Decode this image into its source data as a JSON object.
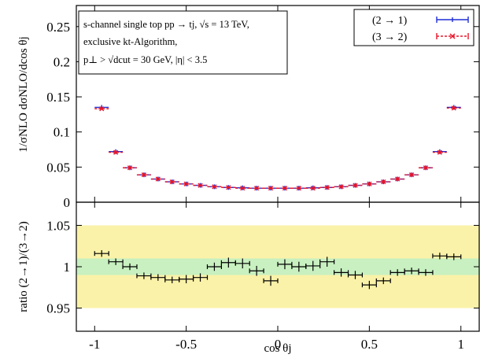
{
  "chart_data": {
    "type": "scatter",
    "xlabel": "cos θj",
    "x_ticks": [
      "-1",
      "-0.5",
      "0",
      "0.5",
      "1"
    ],
    "x_tick_values": [
      -1,
      -0.5,
      0,
      0.5,
      1
    ],
    "xlim": [
      -1.1,
      1.1
    ],
    "info_lines": [
      "s-channel single top  pp → tj, √s = 13 TeV,",
      "exclusive kt-Algorithm,",
      "p⊥ > √dcut = 30 GeV, |η| < 3.5"
    ],
    "legend_position": "top-right",
    "bin_half_width": 0.0385,
    "x_centers": [
      -0.9615,
      -0.8846,
      -0.8077,
      -0.7308,
      -0.6538,
      -0.5769,
      -0.5,
      -0.4231,
      -0.3462,
      -0.2692,
      -0.1923,
      -0.1154,
      -0.0385,
      0.0385,
      0.1154,
      0.1923,
      0.2692,
      0.3462,
      0.4231,
      0.5,
      0.5769,
      0.6538,
      0.7308,
      0.8077,
      0.8846,
      0.9615
    ],
    "main_panel": {
      "ylabel": "1/σNLO dσNLO/dcos θj",
      "ylim": [
        0,
        0.28
      ],
      "y_ticks": [
        "0",
        "0.05",
        "0.1",
        "0.15",
        "0.2",
        "0.25"
      ],
      "y_tick_values": [
        0,
        0.05,
        0.1,
        0.15,
        0.2,
        0.25
      ],
      "series": [
        {
          "name": "(2 → 1)",
          "color": "#1f2fd6",
          "values": [
            0.135,
            0.072,
            0.049,
            0.039,
            0.033,
            0.029,
            0.026,
            0.024,
            0.022,
            0.021,
            0.0205,
            0.02,
            0.02,
            0.02,
            0.02,
            0.0205,
            0.021,
            0.022,
            0.024,
            0.026,
            0.029,
            0.033,
            0.039,
            0.049,
            0.072,
            0.135
          ]
        },
        {
          "name": "(3 → 2)",
          "color": "#e8162a",
          "values": [
            0.133,
            0.071,
            0.049,
            0.039,
            0.033,
            0.029,
            0.026,
            0.024,
            0.022,
            0.021,
            0.02,
            0.02,
            0.02,
            0.02,
            0.02,
            0.02,
            0.021,
            0.022,
            0.024,
            0.026,
            0.029,
            0.033,
            0.039,
            0.049,
            0.071,
            0.134
          ]
        }
      ]
    },
    "ratio_panel": {
      "ylabel": "ratio (2→1)/(3→2)",
      "ylim": [
        0.922,
        1.078
      ],
      "y_ticks": [
        "0.95",
        "1",
        "1.05"
      ],
      "y_tick_values": [
        0.95,
        1,
        1.05
      ],
      "bands": [
        {
          "range": [
            0.95,
            1.05
          ],
          "color": "#faf2a8"
        },
        {
          "range": [
            0.99,
            1.01
          ],
          "color": "#c8f0c0"
        }
      ],
      "series": {
        "color": "#000000",
        "values": [
          1.016,
          1.006,
          1.0,
          0.989,
          0.987,
          0.984,
          0.985,
          0.987,
          1.0,
          1.005,
          1.004,
          0.995,
          0.983,
          1.003,
          1.0,
          1.001,
          1.006,
          0.993,
          0.99,
          0.978,
          0.983,
          0.993,
          0.995,
          0.993,
          1.013,
          1.012
        ],
        "errors": [
          0.004,
          0.004,
          0.004,
          0.004,
          0.004,
          0.004,
          0.005,
          0.005,
          0.005,
          0.006,
          0.006,
          0.006,
          0.006,
          0.006,
          0.006,
          0.006,
          0.006,
          0.005,
          0.005,
          0.005,
          0.004,
          0.004,
          0.004,
          0.004,
          0.004,
          0.004
        ]
      }
    }
  }
}
